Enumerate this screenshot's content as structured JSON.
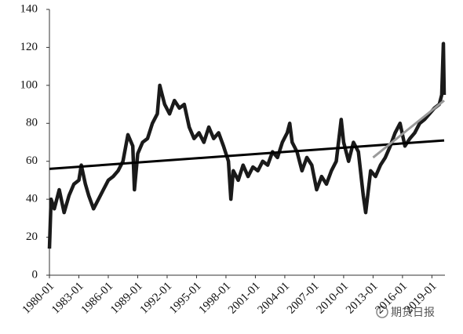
{
  "chart_data": {
    "type": "line",
    "watermark": "期货日报",
    "xlim": [
      "1980-01",
      "2020-04"
    ],
    "xticks": [
      "1980-01",
      "1983-01",
      "1986-01",
      "1989-01",
      "1992-01",
      "1995-01",
      "1998-01",
      "2001-01",
      "2004-01",
      "2007-01",
      "2010-01",
      "2013-01",
      "2016-01",
      "2019-01"
    ],
    "ylim": [
      0,
      140
    ],
    "yticks": [
      0,
      20,
      40,
      60,
      80,
      100,
      120,
      140
    ],
    "series": [
      {
        "color": "#1a1a1a",
        "x": [
          "1980-01",
          "1980-03",
          "1980-07",
          "1981-01",
          "1981-07",
          "1982-01",
          "1982-07",
          "1983-01",
          "1983-04",
          "1983-09",
          "1984-01",
          "1984-07",
          "1985-01",
          "1985-07",
          "1986-01",
          "1986-07",
          "1987-01",
          "1987-07",
          "1988-01",
          "1988-07",
          "1988-09",
          "1989-01",
          "1989-07",
          "1990-01",
          "1990-07",
          "1991-01",
          "1991-04",
          "1991-10",
          "1992-04",
          "1992-10",
          "1993-04",
          "1993-10",
          "1994-04",
          "1994-10",
          "1995-04",
          "1995-10",
          "1996-04",
          "1996-10",
          "1997-04",
          "1997-10",
          "1998-04",
          "1998-07",
          "1998-10",
          "1999-04",
          "1999-10",
          "2000-04",
          "2000-10",
          "2001-04",
          "2001-10",
          "2002-04",
          "2002-10",
          "2003-04",
          "2003-10",
          "2004-04",
          "2004-07",
          "2004-10",
          "2005-04",
          "2005-10",
          "2006-04",
          "2006-10",
          "2007-04",
          "2007-10",
          "2008-04",
          "2008-10",
          "2009-04",
          "2009-10",
          "2010-01",
          "2010-07",
          "2011-01",
          "2011-07",
          "2012-01",
          "2012-04",
          "2012-10",
          "2013-04",
          "2013-10",
          "2014-04",
          "2014-10",
          "2015-04",
          "2015-10",
          "2016-04",
          "2016-10",
          "2017-04",
          "2017-10",
          "2018-04",
          "2018-10",
          "2019-04",
          "2019-10",
          "2020-01",
          "2020-03",
          "2020-04"
        ],
        "values": [
          14,
          40,
          35,
          45,
          33,
          42,
          48,
          50,
          58,
          48,
          42,
          35,
          40,
          45,
          50,
          52,
          55,
          60,
          74,
          68,
          45,
          64,
          70,
          72,
          80,
          85,
          100,
          90,
          85,
          92,
          88,
          90,
          78,
          72,
          75,
          70,
          78,
          72,
          75,
          68,
          60,
          40,
          55,
          50,
          58,
          52,
          57,
          55,
          60,
          58,
          65,
          62,
          70,
          75,
          80,
          70,
          65,
          55,
          62,
          58,
          45,
          52,
          48,
          55,
          60,
          82,
          70,
          60,
          70,
          65,
          42,
          33,
          55,
          52,
          58,
          62,
          68,
          75,
          80,
          68,
          72,
          75,
          80,
          82,
          85,
          88,
          90,
          95,
          122,
          95
        ]
      },
      {
        "color": "#000000",
        "x": [
          "1980-01",
          "2020-04"
        ],
        "values": [
          56,
          71
        ]
      },
      {
        "color": "#9a9a9a",
        "x": [
          "2013-01",
          "2020-04"
        ],
        "values": [
          62,
          92
        ]
      }
    ]
  }
}
